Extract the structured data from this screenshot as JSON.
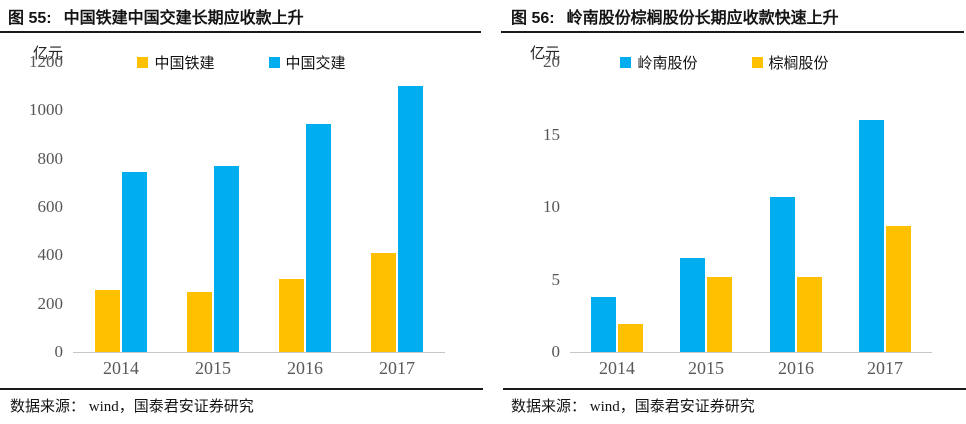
{
  "figures": [
    {
      "title_prefix": "图 55:",
      "source": "数据来源： wind，国泰君安证券研究"
    },
    {
      "title_prefix": "图 56:",
      "source": "数据来源： wind，国泰君安证券研究"
    }
  ],
  "chart_data": [
    {
      "type": "bar",
      "title": "中国铁建中国交建长期应收款上升",
      "categories": [
        "2014",
        "2015",
        "2016",
        "2017"
      ],
      "series": [
        {
          "name": "中国铁建",
          "color": "#FFC000",
          "values": [
            255,
            250,
            300,
            410
          ]
        },
        {
          "name": "中国交建",
          "color": "#00AEEF",
          "values": [
            745,
            770,
            945,
            1100
          ]
        }
      ],
      "xlabel": "",
      "ylabel": "亿元",
      "ylim": [
        0,
        1200
      ],
      "ytick_step": 200,
      "grid": false,
      "legend_position": "top"
    },
    {
      "type": "bar",
      "title": "岭南股份棕榈股份长期应收款快速上升",
      "categories": [
        "2014",
        "2015",
        "2016",
        "2017"
      ],
      "series": [
        {
          "name": "岭南股份",
          "color": "#00AEEF",
          "values": [
            3.8,
            6.5,
            10.7,
            16.0
          ]
        },
        {
          "name": "棕榈股份",
          "color": "#FFC000",
          "values": [
            1.9,
            5.2,
            5.2,
            8.7
          ]
        }
      ],
      "xlabel": "",
      "ylabel": "亿元",
      "ylim": [
        0,
        20
      ],
      "ytick_step": 5,
      "grid": false,
      "legend_position": "top"
    }
  ]
}
